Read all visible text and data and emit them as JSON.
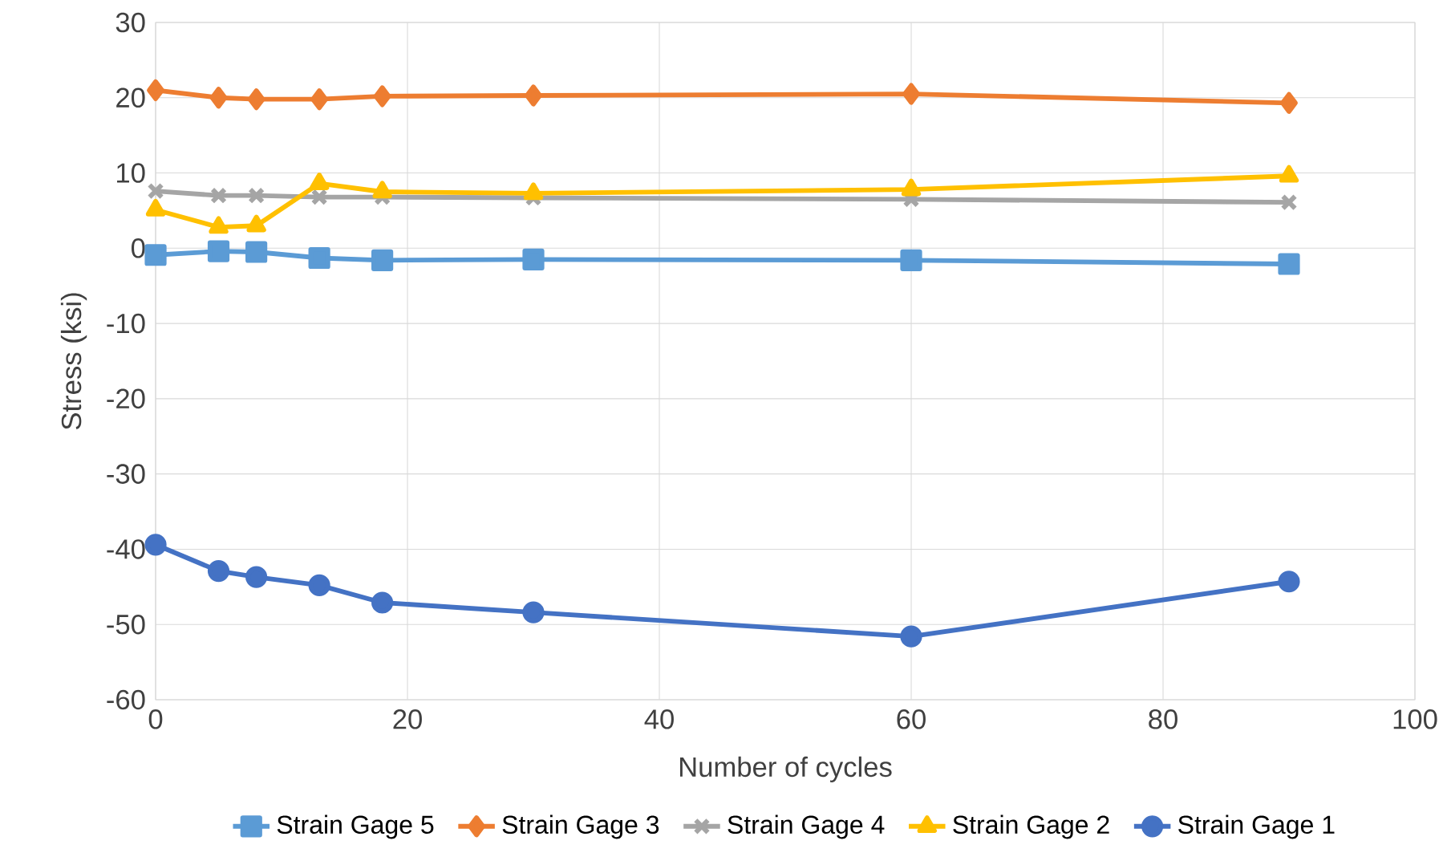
{
  "chart_data": {
    "type": "line",
    "xlabel": "Number of cycles",
    "ylabel": "Stress (ksi)",
    "x": [
      0,
      5,
      8,
      13,
      18,
      30,
      60,
      90
    ],
    "series": [
      {
        "name": "Strain Gage 5",
        "color": "#5b9bd5",
        "marker": "square",
        "values": [
          -0.9,
          -0.4,
          -0.5,
          -1.3,
          -1.6,
          -1.5,
          -1.6,
          -2.1
        ]
      },
      {
        "name": "Strain Gage 3",
        "color": "#ed7d31",
        "marker": "diamond",
        "values": [
          21,
          20,
          19.8,
          19.8,
          20.2,
          20.3,
          20.5,
          19.3
        ]
      },
      {
        "name": "Strain Gage 4",
        "color": "#a5a5a5",
        "marker": "cross",
        "values": [
          7.6,
          7,
          7,
          6.8,
          6.8,
          6.7,
          6.5,
          6.1
        ]
      },
      {
        "name": "Strain Gage 2",
        "color": "#ffc000",
        "marker": "triangle",
        "values": [
          5.1,
          2.8,
          3.0,
          8.6,
          7.5,
          7.3,
          7.8,
          9.6
        ]
      },
      {
        "name": "Strain Gage 1",
        "color": "#4472c4",
        "marker": "circle",
        "values": [
          -39.4,
          -42.9,
          -43.7,
          -44.8,
          -47.1,
          -48.4,
          -51.6,
          -44.3
        ]
      }
    ],
    "xlim": [
      0,
      100
    ],
    "xticks": [
      0,
      20,
      40,
      60,
      80,
      100
    ],
    "ylim": [
      -60,
      30
    ],
    "yticks": [
      -60,
      -50,
      -40,
      -30,
      -20,
      -10,
      0,
      10,
      20,
      30
    ],
    "grid": true,
    "legend": "bottom",
    "line_style": "solid"
  }
}
